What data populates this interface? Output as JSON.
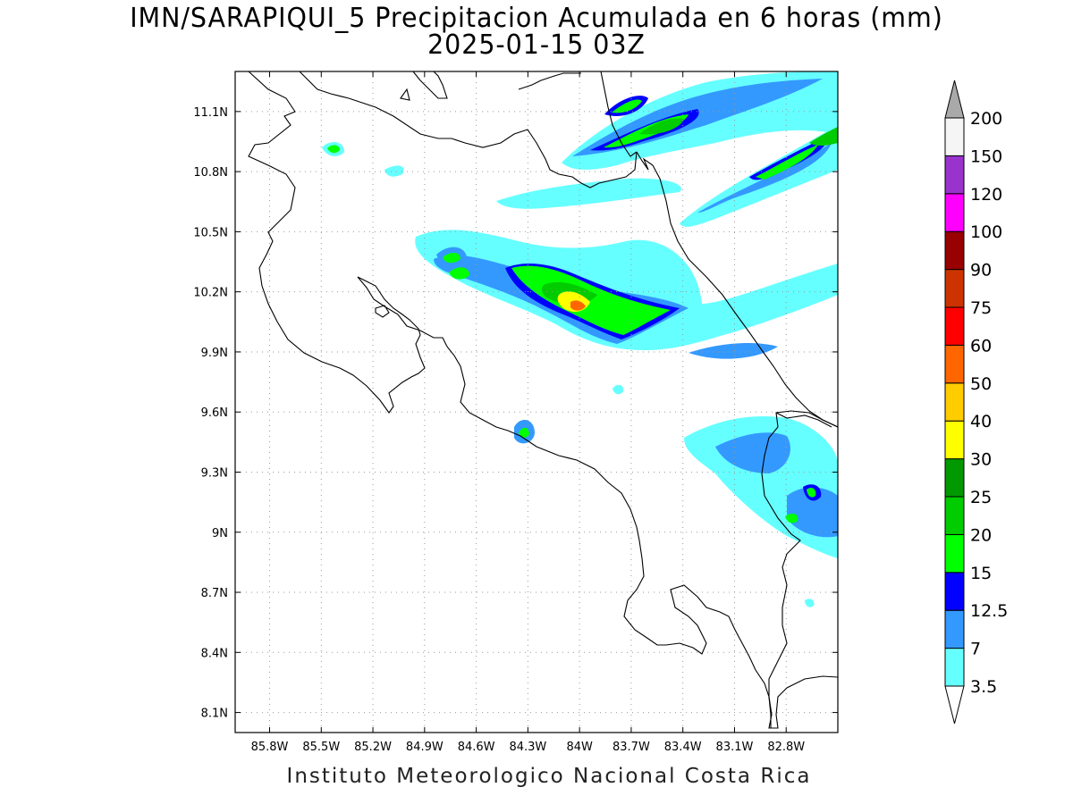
{
  "title": "IMN/SARAPIQUI_5 Precipitacion Acumulada en 6 horas (mm)",
  "subtitle": "2025-01-15 03Z",
  "footer": "Instituto Meteorologico Nacional Costa Rica",
  "map": {
    "lon_range": [
      -86.0,
      -82.5
    ],
    "lat_range": [
      8.0,
      11.3
    ],
    "lon_ticks": [
      "85.8W",
      "85.5W",
      "85.2W",
      "84.9W",
      "84.6W",
      "84.3W",
      "84W",
      "83.7W",
      "83.4W",
      "83.1W",
      "82.8W"
    ],
    "lat_ticks": [
      "11.1N",
      "10.8N",
      "10.5N",
      "10.2N",
      "9.9N",
      "9.6N",
      "9.3N",
      "9N",
      "8.7N",
      "8.4N",
      "8.1N"
    ],
    "grid": "dotted",
    "coastline_color": "#000000"
  },
  "colorbar": {
    "labels": [
      "3.5",
      "7",
      "12.5",
      "15",
      "20",
      "25",
      "30",
      "40",
      "50",
      "60",
      "75",
      "90",
      "100",
      "120",
      "150",
      "200"
    ],
    "colors": [
      "#66ffff",
      "#3399ff",
      "#0000ff",
      "#00ff00",
      "#00cc00",
      "#009900",
      "#ffff00",
      "#ffcc00",
      "#ff6600",
      "#ff0000",
      "#cc3300",
      "#990000",
      "#ff00ff",
      "#9933cc",
      "#f5f5f5",
      "#a9a9a9"
    ]
  },
  "precip_colors": {
    "light": "#66ffff",
    "moderate": "#3399ff",
    "heavy": "#0000ff",
    "very_heavy": "#00ff00",
    "intense": "#00cc00",
    "extreme": "#ffff00",
    "max": "#ff6600"
  }
}
